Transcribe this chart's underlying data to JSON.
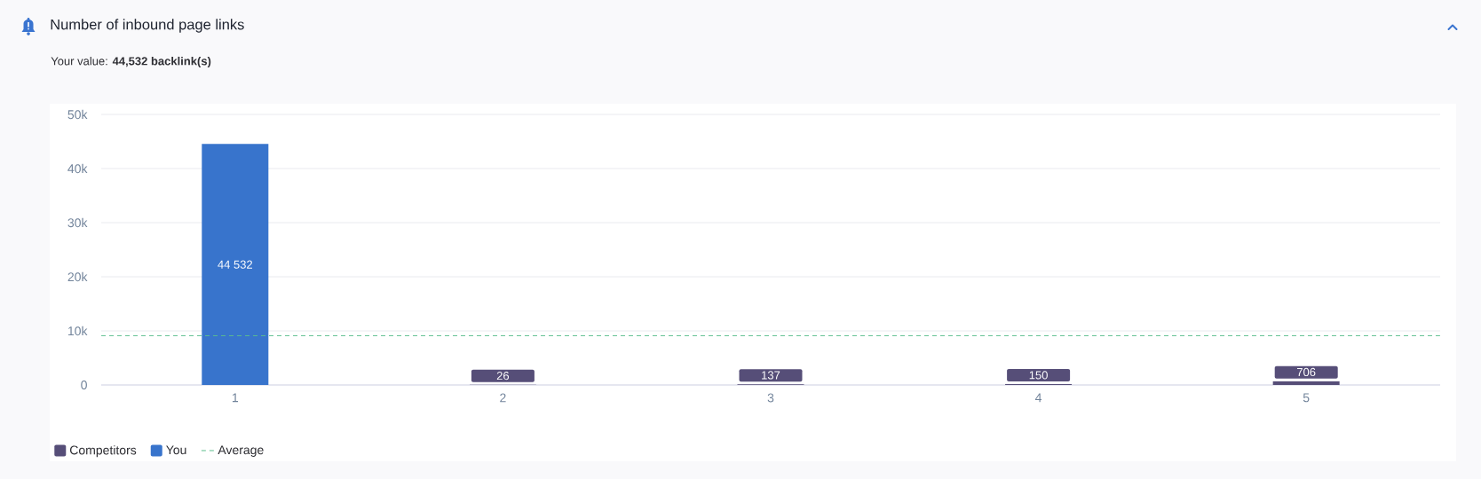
{
  "chart_data": {
    "type": "bar",
    "title": "Number of inbound page links",
    "subtitle": "Your value: **44,532 backlink(s)**",
    "categories": [
      "1",
      "2",
      "3",
      "4",
      "5"
    ],
    "series": [
      {
        "name": "Competitors",
        "color": "#564e78",
        "values": [
          null,
          26,
          137,
          150,
          706
        ],
        "value_labels": [
          null,
          "26",
          "137",
          "150",
          "706"
        ]
      },
      {
        "name": "You",
        "color": "#3874cc",
        "values": [
          44532,
          null,
          null,
          null,
          null
        ],
        "value_labels": [
          "44 532",
          null,
          null,
          null,
          null
        ]
      }
    ],
    "ylim": [
      0,
      50000
    ],
    "yticks": [
      0,
      {
        "value": 10000,
        "label": "10k"
      },
      {
        "value": 20000,
        "label": "20k"
      },
      {
        "value": 30000,
        "label": "30k"
      },
      {
        "value": 40000,
        "label": "40k"
      },
      {
        "value": 50000,
        "label": "50k"
      }
    ],
    "grid": "y",
    "legend": "bottom left",
    "ref_lines": [
      {
        "axis": "y",
        "value": 9110,
        "label": "Average",
        "color": "#5cbf8e",
        "line_style": "dashed"
      }
    ]
  }
}
